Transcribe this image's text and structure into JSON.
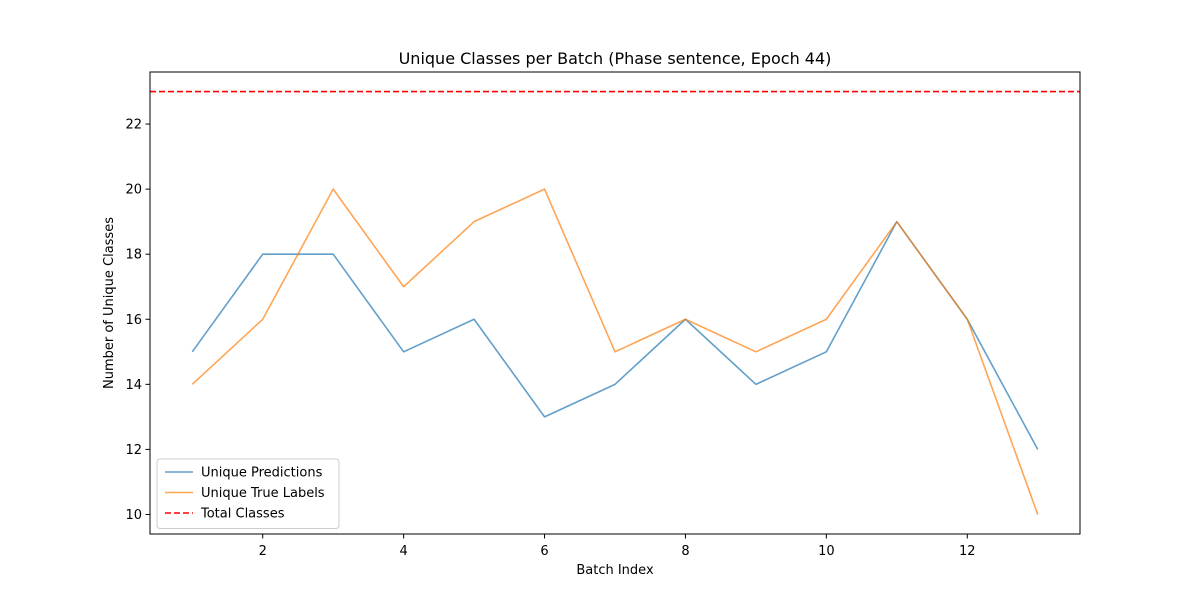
{
  "chart_data": {
    "type": "line",
    "title": "Unique Classes per Batch (Phase sentence, Epoch 44)",
    "xlabel": "Batch Index",
    "ylabel": "Number of Unique Classes",
    "xlim": [
      0.4,
      13.6
    ],
    "ylim": [
      9.4,
      23.6
    ],
    "xticks": [
      2,
      4,
      6,
      8,
      10,
      12
    ],
    "yticks": [
      10,
      12,
      14,
      16,
      18,
      20,
      22
    ],
    "grid": false,
    "legend_position": "lower-left",
    "x": [
      1,
      2,
      3,
      4,
      5,
      6,
      7,
      8,
      9,
      10,
      11,
      12,
      13
    ],
    "series": [
      {
        "name": "Unique Predictions",
        "color": "#1f77b4",
        "values": [
          15,
          18,
          18,
          15,
          16,
          13,
          14,
          16,
          14,
          15,
          19,
          16,
          12
        ]
      },
      {
        "name": "Unique True Labels",
        "color": "#ff7f0e",
        "values": [
          14,
          16,
          20,
          17,
          19,
          20,
          15,
          16,
          15,
          16,
          19,
          16,
          10
        ]
      }
    ],
    "reference_lines": [
      {
        "name": "Total Classes",
        "color": "#ff0000",
        "style": "dashed",
        "y": 23
      }
    ]
  }
}
